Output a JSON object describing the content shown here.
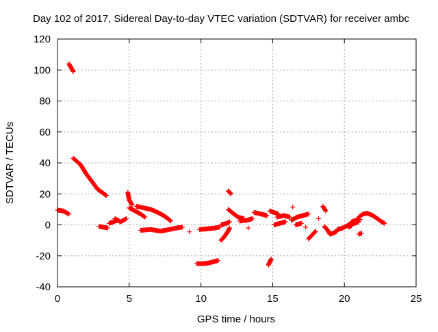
{
  "chart_data": {
    "type": "scatter",
    "title": "Day 102 of 2017, Sidereal Day-to-day VTEC variation (SDTVAR) for receiver ambc",
    "xlabel": "GPS time / hours",
    "ylabel": "SDTVAR / TECUs",
    "xlim": [
      0,
      25
    ],
    "ylim": [
      -40,
      120
    ],
    "xticks": [
      0,
      5,
      10,
      15,
      20,
      25
    ],
    "yticks": [
      -40,
      -20,
      0,
      20,
      40,
      60,
      80,
      100,
      120
    ],
    "grid": true,
    "marker": "+",
    "color": "#ff0000",
    "series": [
      {
        "name": "SDTVAR",
        "segments": [
          [
            [
              0.0,
              9.5
            ],
            [
              0.4,
              9
            ],
            [
              0.8,
              7
            ]
          ],
          [
            [
              0.8,
              104
            ],
            [
              1.1,
              99
            ]
          ],
          [
            [
              1.1,
              43
            ],
            [
              1.6,
              39
            ],
            [
              2.0,
              33
            ],
            [
              2.4,
              28
            ],
            [
              2.8,
              23
            ],
            [
              3.1,
              21
            ],
            [
              3.4,
              19
            ]
          ],
          [
            [
              2.9,
              -1
            ],
            [
              3.2,
              -1.5
            ],
            [
              3.5,
              -2
            ]
          ],
          [
            [
              3.6,
              1
            ],
            [
              3.9,
              2
            ],
            [
              4.2,
              3
            ]
          ],
          [
            [
              4.0,
              4
            ],
            [
              4.4,
              2
            ],
            [
              4.8,
              4
            ]
          ],
          [
            [
              4.9,
              21
            ],
            [
              5.0,
              16
            ],
            [
              5.2,
              13
            ]
          ],
          [
            [
              5.0,
              11
            ],
            [
              5.4,
              9
            ],
            [
              5.8,
              7
            ],
            [
              6.1,
              5
            ]
          ],
          [
            [
              5.5,
              12
            ],
            [
              6.0,
              11
            ],
            [
              6.5,
              10
            ],
            [
              7.0,
              8
            ],
            [
              7.4,
              6
            ],
            [
              7.7,
              4
            ],
            [
              7.9,
              2.5
            ]
          ],
          [
            [
              5.8,
              -3.5
            ],
            [
              6.5,
              -3
            ],
            [
              7.2,
              -4
            ],
            [
              7.8,
              -3
            ],
            [
              8.3,
              -2
            ],
            [
              8.7,
              -1.5
            ]
          ],
          [
            [
              9.2,
              -4.5
            ]
          ],
          [
            [
              9.7,
              -25
            ],
            [
              10.2,
              -25
            ],
            [
              10.6,
              -24.5
            ],
            [
              11.0,
              -23.5
            ],
            [
              11.2,
              -23
            ]
          ],
          [
            [
              9.9,
              -3
            ],
            [
              10.5,
              -2.5
            ],
            [
              11.0,
              -2
            ],
            [
              11.3,
              -1.5
            ]
          ],
          [
            [
              11.4,
              -10
            ],
            [
              11.6,
              -8
            ],
            [
              11.9,
              -4
            ],
            [
              12.0,
              -2
            ]
          ],
          [
            [
              11.4,
              0
            ],
            [
              11.8,
              1
            ],
            [
              12.0,
              2
            ]
          ],
          [
            [
              11.9,
              22
            ],
            [
              12.0,
              21
            ],
            [
              12.1,
              20
            ]
          ],
          [
            [
              11.9,
              10
            ],
            [
              12.3,
              7
            ],
            [
              12.6,
              5
            ],
            [
              13.0,
              4
            ]
          ],
          [
            [
              12.7,
              2.5
            ],
            [
              13.2,
              3
            ],
            [
              13.6,
              4
            ]
          ],
          [
            [
              13.3,
              -2
            ]
          ],
          [
            [
              13.7,
              8
            ],
            [
              14.2,
              7
            ],
            [
              14.6,
              6
            ]
          ],
          [
            [
              14.7,
              -26
            ],
            [
              14.8,
              -24
            ],
            [
              14.9,
              -22
            ]
          ],
          [
            [
              14.8,
              9
            ],
            [
              15.1,
              8
            ],
            [
              15.4,
              7
            ]
          ],
          [
            [
              15.1,
              0
            ],
            [
              15.5,
              1
            ],
            [
              15.9,
              2
            ]
          ],
          [
            [
              15.3,
              5
            ],
            [
              15.8,
              6
            ],
            [
              16.2,
              5
            ]
          ],
          [
            [
              16.3,
              3
            ],
            [
              16.7,
              5
            ],
            [
              17.1,
              6
            ],
            [
              17.5,
              7
            ]
          ],
          [
            [
              16.4,
              11.5
            ]
          ],
          [
            [
              16.6,
              0
            ],
            [
              17.0,
              1
            ]
          ],
          [
            [
              17.3,
              -1.5
            ]
          ],
          [
            [
              17.5,
              -9
            ],
            [
              17.8,
              -6
            ],
            [
              18.0,
              -4
            ]
          ],
          [
            [
              18.2,
              4
            ]
          ],
          [
            [
              18.5,
              12
            ],
            [
              18.7,
              9
            ]
          ],
          [
            [
              18.6,
              -1
            ],
            [
              18.8,
              -3
            ],
            [
              19.0,
              -6
            ],
            [
              19.3,
              -5
            ],
            [
              19.5,
              -4
            ]
          ],
          [
            [
              19.5,
              -3
            ],
            [
              19.9,
              -2
            ],
            [
              20.3,
              0
            ],
            [
              20.7,
              1
            ],
            [
              21.0,
              2
            ]
          ],
          [
            [
              20.3,
              -1.5
            ],
            [
              20.5,
              -0.5
            ]
          ],
          [
            [
              20.5,
              2
            ],
            [
              20.8,
              3
            ],
            [
              21.1,
              3.5
            ]
          ],
          [
            [
              21.0,
              -6
            ],
            [
              21.2,
              -5.5
            ]
          ],
          [
            [
              21.0,
              5
            ],
            [
              21.3,
              7
            ],
            [
              21.6,
              7.5
            ],
            [
              22.0,
              6
            ],
            [
              22.3,
              4
            ],
            [
              22.6,
              2
            ],
            [
              22.8,
              1
            ]
          ]
        ]
      }
    ]
  }
}
